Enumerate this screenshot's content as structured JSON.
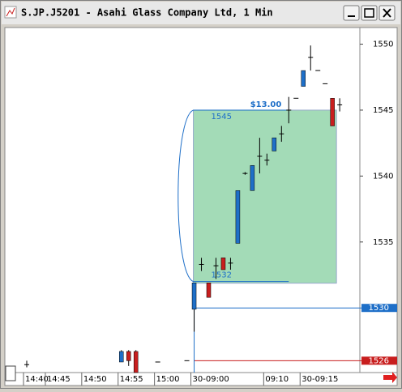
{
  "chart_data": {
    "type": "candlestick",
    "title": "S.JP.J5201 - Asahi Glass Company Ltd, 1 Min",
    "categories": [
      "14:40",
      null,
      null,
      "14:45",
      null,
      null,
      null,
      null,
      "14:50",
      null,
      null,
      null,
      null,
      "14:55",
      null,
      null,
      null,
      null,
      "15:00",
      null,
      null,
      null,
      null,
      "30-09:00",
      null,
      null,
      null,
      null,
      null,
      null,
      null,
      null,
      null,
      "09:10",
      null,
      null,
      null,
      null,
      "30-09:15",
      null,
      null,
      null,
      null,
      null
    ],
    "open": [
      1525.7,
      null,
      null,
      null,
      null,
      null,
      null,
      null,
      null,
      null,
      null,
      null,
      null,
      1525.9,
      1526.7,
      1526.7,
      null,
      null,
      1525.9,
      null,
      null,
      null,
      1526.0,
      1529.9,
      1533.3,
      1531.9,
      1533.2,
      1533.8,
      1533.4,
      1534.9,
      1540.2,
      1538.9,
      1541.5,
      1541.2,
      1541.9,
      1543.2,
      1545.0,
      1545.9,
      1546.8,
      1549.0,
      1548.0,
      1547.0,
      1545.9,
      1545.4
    ],
    "high": [
      1526.0,
      null,
      null,
      null,
      null,
      null,
      null,
      null,
      null,
      null,
      null,
      null,
      null,
      1526.8,
      1526.8,
      1526.8,
      null,
      null,
      1525.9,
      null,
      null,
      null,
      1526.0,
      1531.9,
      1533.8,
      1531.9,
      1533.8,
      1533.8,
      1533.8,
      1538.9,
      1540.3,
      1540.8,
      1542.9,
      1541.7,
      1542.9,
      1543.8,
      1546.0,
      1545.9,
      1548.0,
      1549.9,
      1548.0,
      1547.0,
      1545.9,
      1545.9
    ],
    "low": [
      1525.5,
      null,
      null,
      null,
      null,
      null,
      null,
      null,
      null,
      null,
      null,
      null,
      null,
      1525.9,
      1525.6,
      1525.1,
      null,
      null,
      1525.9,
      null,
      null,
      null,
      1526.0,
      1528.2,
      1532.8,
      1530.8,
      1532.2,
      1532.9,
      1532.9,
      1534.9,
      1540.1,
      1538.9,
      1540.2,
      1540.8,
      1541.9,
      1542.6,
      1544.0,
      1545.9,
      1546.8,
      1548.0,
      1548.0,
      1547.0,
      1543.8,
      1544.9
    ],
    "close": [
      1525.7,
      null,
      null,
      null,
      null,
      null,
      null,
      null,
      null,
      null,
      null,
      null,
      null,
      1526.7,
      1526.0,
      1525.1,
      null,
      null,
      1525.9,
      null,
      null,
      null,
      1526.0,
      1531.9,
      1533.3,
      1530.8,
      1533.2,
      1532.9,
      1533.4,
      1538.9,
      1540.2,
      1540.8,
      1541.5,
      1541.2,
      1542.9,
      1543.2,
      1545.0,
      1545.9,
      1548.0,
      1549.0,
      1548.0,
      1547.0,
      1543.8,
      1545.4
    ],
    "up_color": "#1e6fc8",
    "down_color": "#c81e1e",
    "ylim": [
      1525.1,
      1551.2
    ],
    "yticks": [
      1535,
      1540,
      1545,
      1550
    ],
    "levels": [
      {
        "value": 1530,
        "color": "#1e6fc8"
      },
      {
        "value": 1526,
        "color": "#c81e1e"
      }
    ],
    "range": {
      "high": 1545,
      "low": 1532,
      "label": "$13.00"
    }
  }
}
